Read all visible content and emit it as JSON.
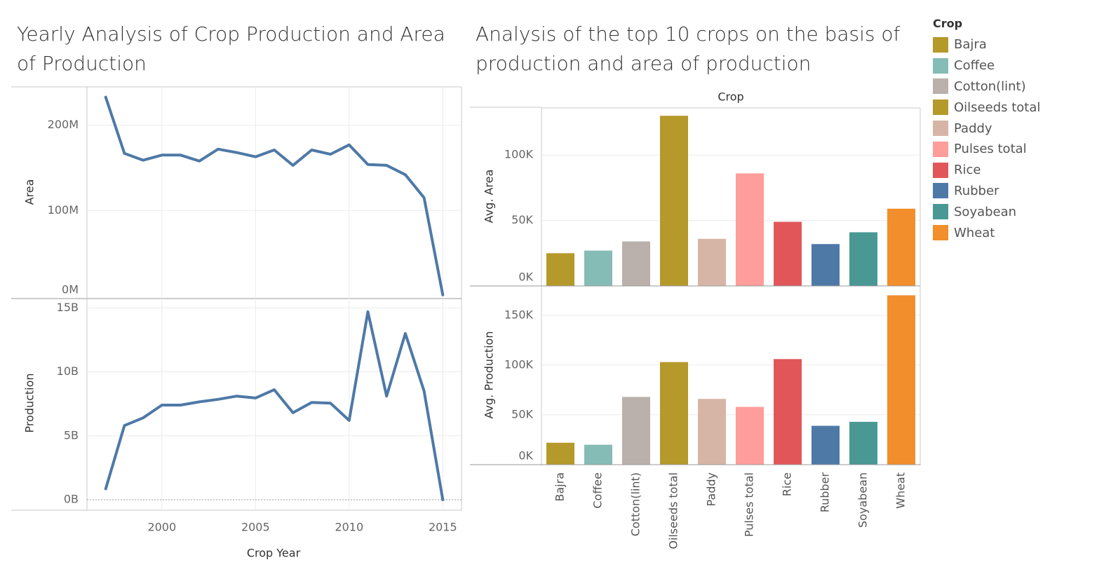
{
  "left_title": "Yearly Analysis of Crop Production and Area of Production",
  "right_title": "Analysis of the top 10 crops on the basis of production and area of production",
  "legend": {
    "title": "Crop",
    "items": [
      {
        "label": "Bajra",
        "color": "#b5992b"
      },
      {
        "label": "Coffee",
        "color": "#86bcb6"
      },
      {
        "label": "Cotton(lint)",
        "color": "#bab0ac"
      },
      {
        "label": "Oilseeds total",
        "color": "#b5992b"
      },
      {
        "label": "Paddy",
        "color": "#d7b5a6"
      },
      {
        "label": "Pulses total",
        "color": "#ff9d9a"
      },
      {
        "label": "Rice",
        "color": "#e15759"
      },
      {
        "label": "Rubber",
        "color": "#4e79a7"
      },
      {
        "label": "Soyabean",
        "color": "#499894"
      },
      {
        "label": "Wheat",
        "color": "#f28e2b"
      }
    ]
  },
  "chart_data": [
    {
      "type": "line",
      "title": "Yearly Analysis of Crop Production and Area of Production",
      "xlabel": "Crop Year",
      "ylabel": "Area",
      "x": [
        1997,
        1998,
        1999,
        2000,
        2001,
        2002,
        2003,
        2004,
        2005,
        2006,
        2007,
        2008,
        2009,
        2010,
        2011,
        2012,
        2013,
        2014,
        2015
      ],
      "xticks": [
        2000,
        2005,
        2010,
        2015
      ],
      "yticks": [
        {
          "v": 0,
          "label": "0M"
        },
        {
          "v": 100000000,
          "label": "100M"
        },
        {
          "v": 200000000,
          "label": "200M"
        }
      ],
      "ylim": [
        0,
        245000000
      ],
      "color": "#4e79a7",
      "series": [
        {
          "values": [
            233000000,
            167000000,
            159000000,
            165000000,
            165000000,
            158000000,
            172000000,
            168000000,
            163000000,
            171000000,
            153000000,
            171000000,
            166000000,
            177000000,
            154000000,
            153000000,
            142000000,
            115000000,
            1000000
          ]
        }
      ]
    },
    {
      "type": "line",
      "xlabel": "Crop Year",
      "ylabel": "Production",
      "x": [
        1997,
        1998,
        1999,
        2000,
        2001,
        2002,
        2003,
        2004,
        2005,
        2006,
        2007,
        2008,
        2009,
        2010,
        2011,
        2012,
        2013,
        2014,
        2015
      ],
      "xticks": [
        2000,
        2005,
        2010,
        2015
      ],
      "yticks": [
        {
          "v": 0,
          "label": "0B"
        },
        {
          "v": 5000000000,
          "label": "5B"
        },
        {
          "v": 10000000000,
          "label": "10B"
        },
        {
          "v": 15000000000,
          "label": "15B"
        }
      ],
      "ylim": [
        0,
        15400000000
      ],
      "color": "#4e79a7",
      "series": [
        {
          "values": [
            850000000,
            5800000000,
            6400000000,
            7400000000,
            7400000000,
            7650000000,
            7850000000,
            8100000000,
            7950000000,
            8600000000,
            6800000000,
            7600000000,
            7550000000,
            6200000000,
            14700000000,
            8100000000,
            13000000000,
            8500000000,
            0
          ]
        }
      ]
    },
    {
      "type": "bar",
      "title": "Analysis of the top 10 crops on the basis of production and area of production",
      "header": "Crop",
      "ylabel": "Avg. Area",
      "categories": [
        "Bajra",
        "Coffee",
        "Cotton(lint)",
        "Oilseeds total",
        "Paddy",
        "Pulses total",
        "Rice",
        "Rubber",
        "Soyabean",
        "Wheat"
      ],
      "values": [
        25000,
        27000,
        34000,
        130000,
        36000,
        86000,
        49000,
        32000,
        41000,
        59000
      ],
      "yticks": [
        {
          "v": 0,
          "label": "0K"
        },
        {
          "v": 50000,
          "label": "50K"
        },
        {
          "v": 100000,
          "label": "100K"
        }
      ],
      "ylim": [
        0,
        136000
      ]
    },
    {
      "type": "bar",
      "ylabel": "Avg. Production",
      "categories": [
        "Bajra",
        "Coffee",
        "Cotton(lint)",
        "Oilseeds total",
        "Paddy",
        "Pulses total",
        "Rice",
        "Rubber",
        "Soyabean",
        "Wheat"
      ],
      "values": [
        22000,
        20000,
        68000,
        103000,
        66000,
        58000,
        106000,
        39000,
        43000,
        170000
      ],
      "yticks": [
        {
          "v": 0,
          "label": "0K"
        },
        {
          "v": 50000,
          "label": "50K"
        },
        {
          "v": 100000,
          "label": "100K"
        },
        {
          "v": 150000,
          "label": "150K"
        }
      ],
      "ylim": [
        0,
        178000
      ]
    }
  ]
}
